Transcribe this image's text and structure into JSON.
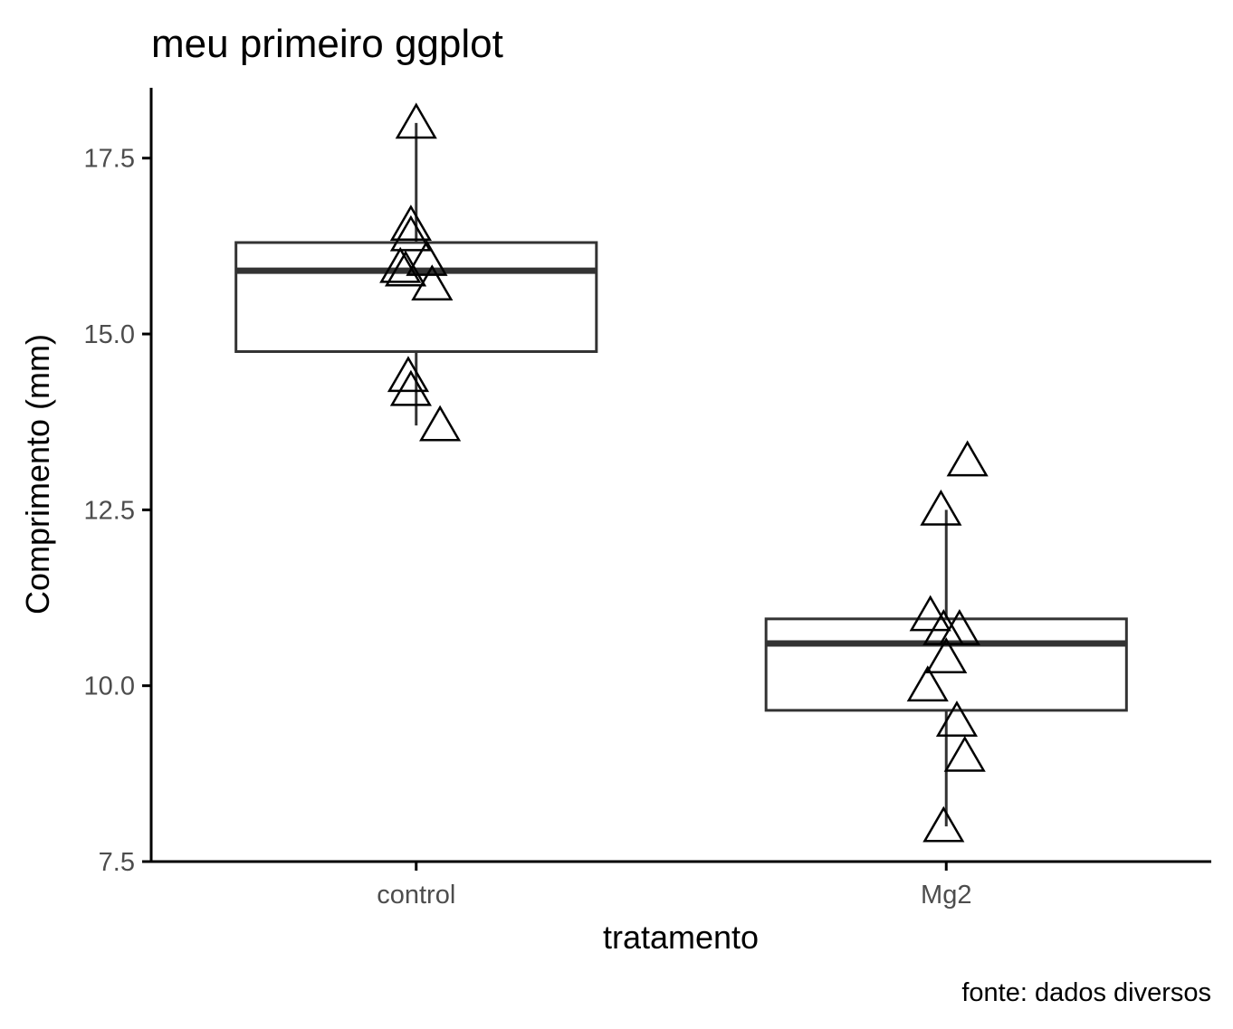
{
  "chart_data": {
    "type": "boxplot",
    "title": "meu primeiro ggplot",
    "xlabel": "tratamento",
    "ylabel": "Comprimento (mm)",
    "caption": "fonte: dados diversos",
    "ylim": [
      7.5,
      18.5
    ],
    "yticks": [
      "7.5",
      "10.0",
      "12.5",
      "15.0",
      "17.5"
    ],
    "categories": [
      "control",
      "Mg2"
    ],
    "grid": false,
    "legend": "none",
    "boxes": [
      {
        "category": "control",
        "whisker_low": 13.7,
        "q1": 14.75,
        "median": 15.9,
        "q3": 16.3,
        "whisker_high": 18.0
      },
      {
        "category": "Mg2",
        "whisker_low": 8.0,
        "q1": 9.65,
        "median": 10.6,
        "q3": 10.95,
        "whisker_high": 12.5
      }
    ],
    "points": [
      {
        "category": "control",
        "jitter": 0.0,
        "y": 18.0
      },
      {
        "category": "control",
        "jitter": -0.01,
        "y": 16.55
      },
      {
        "category": "control",
        "jitter": -0.01,
        "y": 16.4
      },
      {
        "category": "control",
        "jitter": 0.02,
        "y": 16.05
      },
      {
        "category": "control",
        "jitter": -0.03,
        "y": 15.95
      },
      {
        "category": "control",
        "jitter": -0.02,
        "y": 15.9
      },
      {
        "category": "control",
        "jitter": 0.03,
        "y": 15.7
      },
      {
        "category": "control",
        "jitter": -0.015,
        "y": 14.4
      },
      {
        "category": "control",
        "jitter": -0.01,
        "y": 14.2
      },
      {
        "category": "control",
        "jitter": 0.045,
        "y": 13.7
      },
      {
        "category": "Mg2",
        "jitter": 0.04,
        "y": 13.2
      },
      {
        "category": "Mg2",
        "jitter": -0.01,
        "y": 12.5
      },
      {
        "category": "Mg2",
        "jitter": -0.03,
        "y": 11.0
      },
      {
        "category": "Mg2",
        "jitter": 0.025,
        "y": 10.8
      },
      {
        "category": "Mg2",
        "jitter": -0.005,
        "y": 10.8
      },
      {
        "category": "Mg2",
        "jitter": 0.0,
        "y": 10.4
      },
      {
        "category": "Mg2",
        "jitter": -0.035,
        "y": 10.0
      },
      {
        "category": "Mg2",
        "jitter": 0.02,
        "y": 9.5
      },
      {
        "category": "Mg2",
        "jitter": 0.035,
        "y": 9.0
      },
      {
        "category": "Mg2",
        "jitter": -0.005,
        "y": 8.0
      }
    ],
    "colors": {
      "box": "#333333",
      "point": "#000000",
      "axis": "#000000",
      "tick_label": "#4d4d4d"
    },
    "point_shape": "open-triangle-icon"
  }
}
